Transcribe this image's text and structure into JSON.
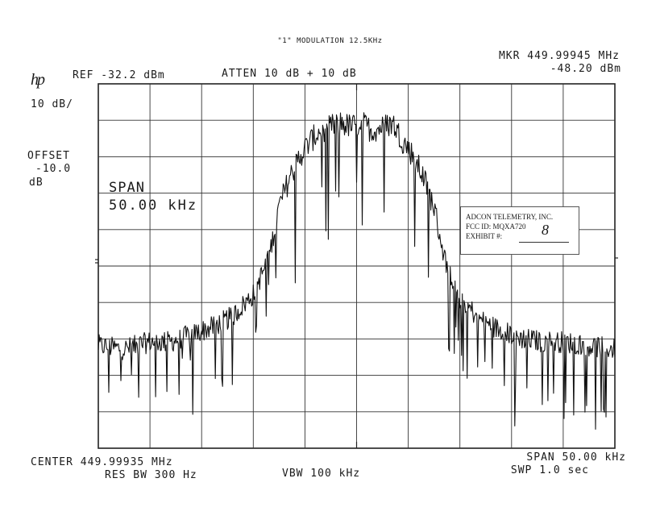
{
  "header": {
    "title": "\"1\" MODULATION 12.5KHz",
    "logo": "hp",
    "ref": "REF -32.2 dBm",
    "atten": "ATTEN 10 dB + 10 dB",
    "marker_label": "MKR 449.99945 MHz",
    "marker_value": "-48.20 dBm"
  },
  "left_panel": {
    "scale": "10 dB/",
    "offset_label": "OFFSET",
    "offset_value": "-10.0",
    "offset_unit": "dB",
    "span_label": "SPAN",
    "span_value": "50.00 kHz"
  },
  "footer": {
    "center": "CENTER 449.99935 MHz",
    "res_bw": "RES BW 300 Hz",
    "vbw": "VBW 100 kHz",
    "span": "SPAN 50.00 kHz",
    "sweep": "SWP 1.0  sec"
  },
  "stamp": {
    "company": "ADCON TELEMETRY, INC.",
    "fcc_id": "FCC ID:  MQXA720",
    "exhibit_label": "EXHIBIT #:",
    "exhibit_value": "8"
  },
  "chart_data": {
    "type": "line",
    "x_unit": "kHz offset from center",
    "y_unit": "dBm",
    "xlim": [
      -25,
      25
    ],
    "ylim": [
      -132.2,
      -32.2
    ],
    "grid": true,
    "series": [
      {
        "x": [
          -25,
          -22.5,
          -20,
          -18,
          -16,
          -14,
          -12,
          -10,
          -8.5,
          -7.5,
          -6.5,
          -5.5,
          -4.5,
          -3.5,
          -2.5,
          -1.5,
          -0.5,
          0.5,
          1.5,
          2.5,
          3.5,
          4.5,
          5.5,
          6.5,
          7.5,
          8.5,
          10,
          12,
          14,
          16,
          18,
          20,
          22.5,
          25
        ],
        "y": [
          -104,
          -105,
          -103,
          -103,
          -101,
          -99,
          -96,
          -90,
          -80,
          -66,
          -58,
          -52,
          -48,
          -45,
          -44,
          -43,
          -44,
          -43,
          -45,
          -44,
          -43,
          -48,
          -52,
          -58,
          -66,
          -80,
          -91,
          -97,
          -100,
          -102,
          -103,
          -103,
          -104,
          -105
        ]
      }
    ]
  }
}
